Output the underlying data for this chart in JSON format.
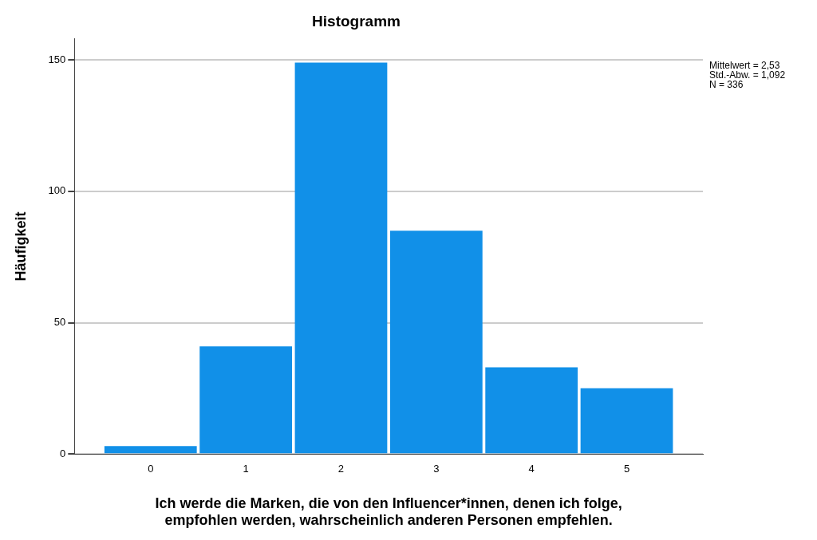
{
  "chart_data": {
    "type": "histogram",
    "title": "Histogramm",
    "xlabel": "Ich werde die Marken, die von den Influencer*innen, denen ich folge, empfohlen werden, wahrscheinlich anderen Personen empfehlen.",
    "ylabel": "Häufigkeit",
    "bins": [
      -0.5,
      0.5,
      1.5,
      2.5,
      3.5,
      4.5,
      5.5
    ],
    "values": [
      3,
      41,
      149,
      85,
      33,
      25
    ],
    "color": "#1190e8",
    "xlim": [
      -0.8,
      5.8
    ],
    "xticks": [
      0,
      1,
      2,
      3,
      4,
      5
    ],
    "ylim": [
      0,
      158
    ],
    "yticks": [
      0,
      50,
      100,
      150
    ],
    "grid": "y",
    "legend": false,
    "annotations": [
      "Mittelwert = 2,53",
      "Std.-Abw. = 1,092",
      "N = 336"
    ]
  }
}
